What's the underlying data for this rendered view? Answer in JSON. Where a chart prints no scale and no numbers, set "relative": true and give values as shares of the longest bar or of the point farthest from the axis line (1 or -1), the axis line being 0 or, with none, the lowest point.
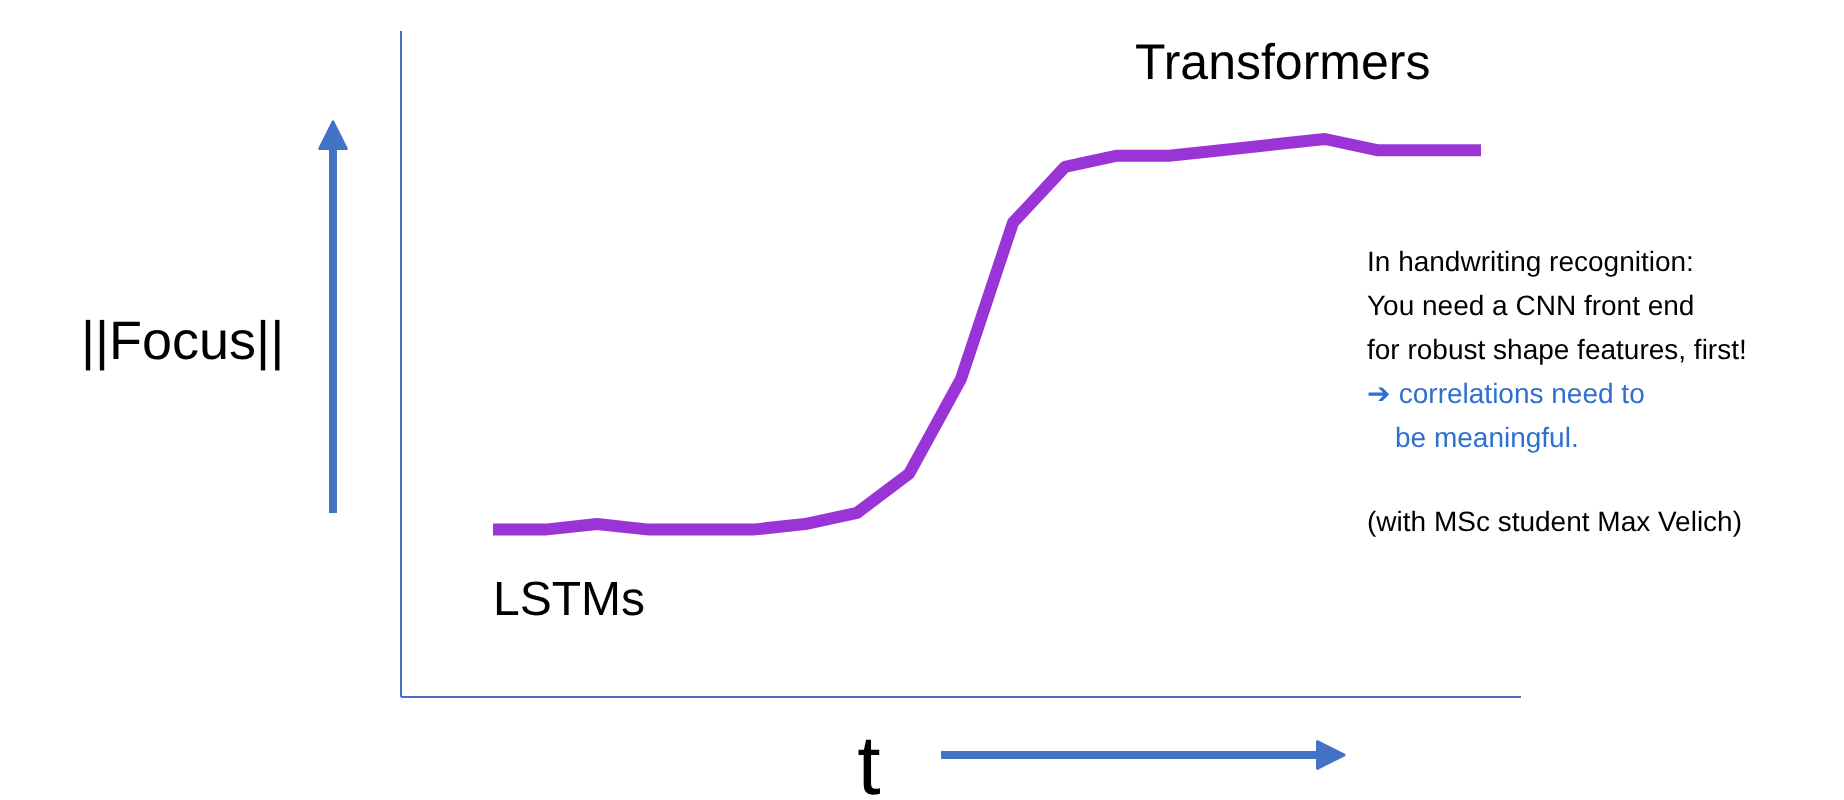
{
  "chart_data": {
    "type": "line",
    "relative": true,
    "xlabel": "t",
    "ylabel": "||Focus||",
    "categories": [
      null,
      null,
      null,
      null,
      null,
      null,
      null,
      null,
      null,
      null,
      null,
      null,
      null,
      null,
      null,
      null,
      null,
      null,
      null,
      null
    ],
    "series": [
      {
        "color": "#8a10d0",
        "values": [
          0.3,
          0.3,
          0.31,
          0.3,
          0.3,
          0.3,
          0.31,
          0.33,
          0.4,
          0.57,
          0.85,
          0.95,
          0.97,
          0.97,
          0.98,
          0.99,
          1.0,
          0.98,
          0.98,
          0.98
        ]
      }
    ],
    "annotations": [
      "Transformers",
      "LSTMs",
      "In handwriting recognition:",
      "You need a CNN front end",
      "for robust shape features, first!",
      "➔ correlations need to",
      "be meaningful.",
      "(with MSc student Max Velich)"
    ]
  }
}
